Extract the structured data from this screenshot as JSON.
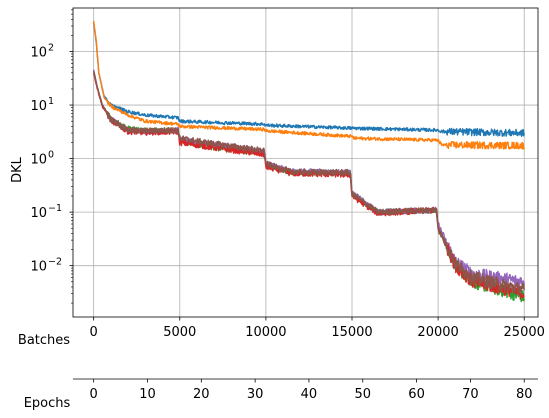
{
  "chart_data": {
    "type": "line",
    "title": "",
    "ylabel": "DKL",
    "yscale": "log",
    "ylim": [
      0.0011,
      650
    ],
    "grid": true,
    "x_axes": [
      {
        "label": "Batches",
        "range": [
          -1200,
          25800
        ],
        "ticks": [
          0,
          5000,
          10000,
          15000,
          20000,
          25000
        ]
      },
      {
        "label": "Epochs",
        "range": [
          -3.84,
          82.56
        ],
        "ticks": [
          0,
          10,
          20,
          30,
          40,
          50,
          60,
          70,
          80
        ]
      }
    ],
    "y_ticks": [
      {
        "value": 0.01,
        "base": "10",
        "exp": "−2"
      },
      {
        "value": 0.1,
        "base": "10",
        "exp": "−1"
      },
      {
        "value": 1,
        "base": "10",
        "exp": "0"
      },
      {
        "value": 10,
        "base": "10",
        "exp": "1"
      },
      {
        "value": 100,
        "base": "10",
        "exp": "2"
      }
    ],
    "series": [
      {
        "color": "#2ca02c",
        "noise": 0.055,
        "points": [
          [
            0,
            43
          ],
          [
            200,
            22
          ],
          [
            500,
            10
          ],
          [
            1000,
            5.5
          ],
          [
            2000,
            3.6
          ],
          [
            3000,
            3.3
          ],
          [
            4900,
            3.3
          ],
          [
            5000,
            2.1
          ],
          [
            7000,
            1.6
          ],
          [
            9900,
            1.3
          ],
          [
            10000,
            0.75
          ],
          [
            11500,
            0.55
          ],
          [
            14900,
            0.53
          ],
          [
            15000,
            0.22
          ],
          [
            16500,
            0.1
          ],
          [
            19900,
            0.11
          ],
          [
            20000,
            0.05
          ],
          [
            21000,
            0.01
          ],
          [
            22000,
            0.005
          ],
          [
            25000,
            0.0026
          ]
        ]
      },
      {
        "color": "#9467bd",
        "noise": 0.055,
        "points": [
          [
            0,
            45
          ],
          [
            200,
            22
          ],
          [
            500,
            10
          ],
          [
            1000,
            5.5
          ],
          [
            2000,
            3.3
          ],
          [
            3000,
            3.2
          ],
          [
            4900,
            3.4
          ],
          [
            5000,
            2.3
          ],
          [
            7000,
            1.8
          ],
          [
            9900,
            1.35
          ],
          [
            10000,
            0.8
          ],
          [
            11500,
            0.58
          ],
          [
            14900,
            0.55
          ],
          [
            15000,
            0.23
          ],
          [
            16500,
            0.1
          ],
          [
            19900,
            0.11
          ],
          [
            20000,
            0.06
          ],
          [
            21000,
            0.012
          ],
          [
            22000,
            0.007
          ],
          [
            25000,
            0.005
          ]
        ]
      },
      {
        "color": "#d62728",
        "noise": 0.055,
        "points": [
          [
            0,
            40
          ],
          [
            200,
            21
          ],
          [
            500,
            9.5
          ],
          [
            1000,
            5.2
          ],
          [
            2000,
            3.2
          ],
          [
            3000,
            3.1
          ],
          [
            4900,
            3.2
          ],
          [
            5000,
            2.0
          ],
          [
            7000,
            1.6
          ],
          [
            9900,
            1.2
          ],
          [
            10000,
            0.7
          ],
          [
            11500,
            0.53
          ],
          [
            14900,
            0.5
          ],
          [
            15000,
            0.2
          ],
          [
            16500,
            0.095
          ],
          [
            19900,
            0.11
          ],
          [
            20000,
            0.05
          ],
          [
            21000,
            0.01
          ],
          [
            22000,
            0.005
          ],
          [
            25000,
            0.003
          ]
        ]
      },
      {
        "color": "#8c564b",
        "noise": 0.055,
        "points": [
          [
            0,
            42
          ],
          [
            200,
            22
          ],
          [
            500,
            10
          ],
          [
            1000,
            5.4
          ],
          [
            2000,
            3.4
          ],
          [
            3000,
            3.3
          ],
          [
            4900,
            3.4
          ],
          [
            5000,
            2.4
          ],
          [
            7000,
            1.9
          ],
          [
            9900,
            1.4
          ],
          [
            10000,
            0.8
          ],
          [
            11500,
            0.56
          ],
          [
            14900,
            0.55
          ],
          [
            15000,
            0.22
          ],
          [
            16500,
            0.1
          ],
          [
            19900,
            0.11
          ],
          [
            20000,
            0.05
          ],
          [
            21000,
            0.011
          ],
          [
            22000,
            0.006
          ],
          [
            25000,
            0.0035
          ]
        ]
      },
      {
        "color": "#1f77b4",
        "noise": 0.03,
        "points": [
          [
            0,
            340
          ],
          [
            150,
            150
          ],
          [
            300,
            40
          ],
          [
            600,
            15
          ],
          [
            1000,
            10
          ],
          [
            2000,
            7.5
          ],
          [
            3000,
            6.5
          ],
          [
            4900,
            5.8
          ],
          [
            5000,
            5.0
          ],
          [
            9900,
            4.4
          ],
          [
            10000,
            4.2
          ],
          [
            15000,
            3.7
          ],
          [
            20000,
            3.4
          ],
          [
            20200,
            3.2
          ],
          [
            25000,
            3.0
          ]
        ]
      },
      {
        "color": "#ff7f0e",
        "noise": 0.03,
        "points": [
          [
            0,
            370
          ],
          [
            150,
            160
          ],
          [
            300,
            40
          ],
          [
            600,
            14
          ],
          [
            1000,
            9.5
          ],
          [
            2000,
            6.5
          ],
          [
            3000,
            5.0
          ],
          [
            4900,
            4.4
          ],
          [
            5000,
            4.0
          ],
          [
            9900,
            3.5
          ],
          [
            10000,
            3.3
          ],
          [
            15000,
            2.6
          ],
          [
            15100,
            2.4
          ],
          [
            20000,
            2.2
          ],
          [
            20200,
            1.8
          ],
          [
            25000,
            1.75
          ]
        ]
      }
    ]
  }
}
